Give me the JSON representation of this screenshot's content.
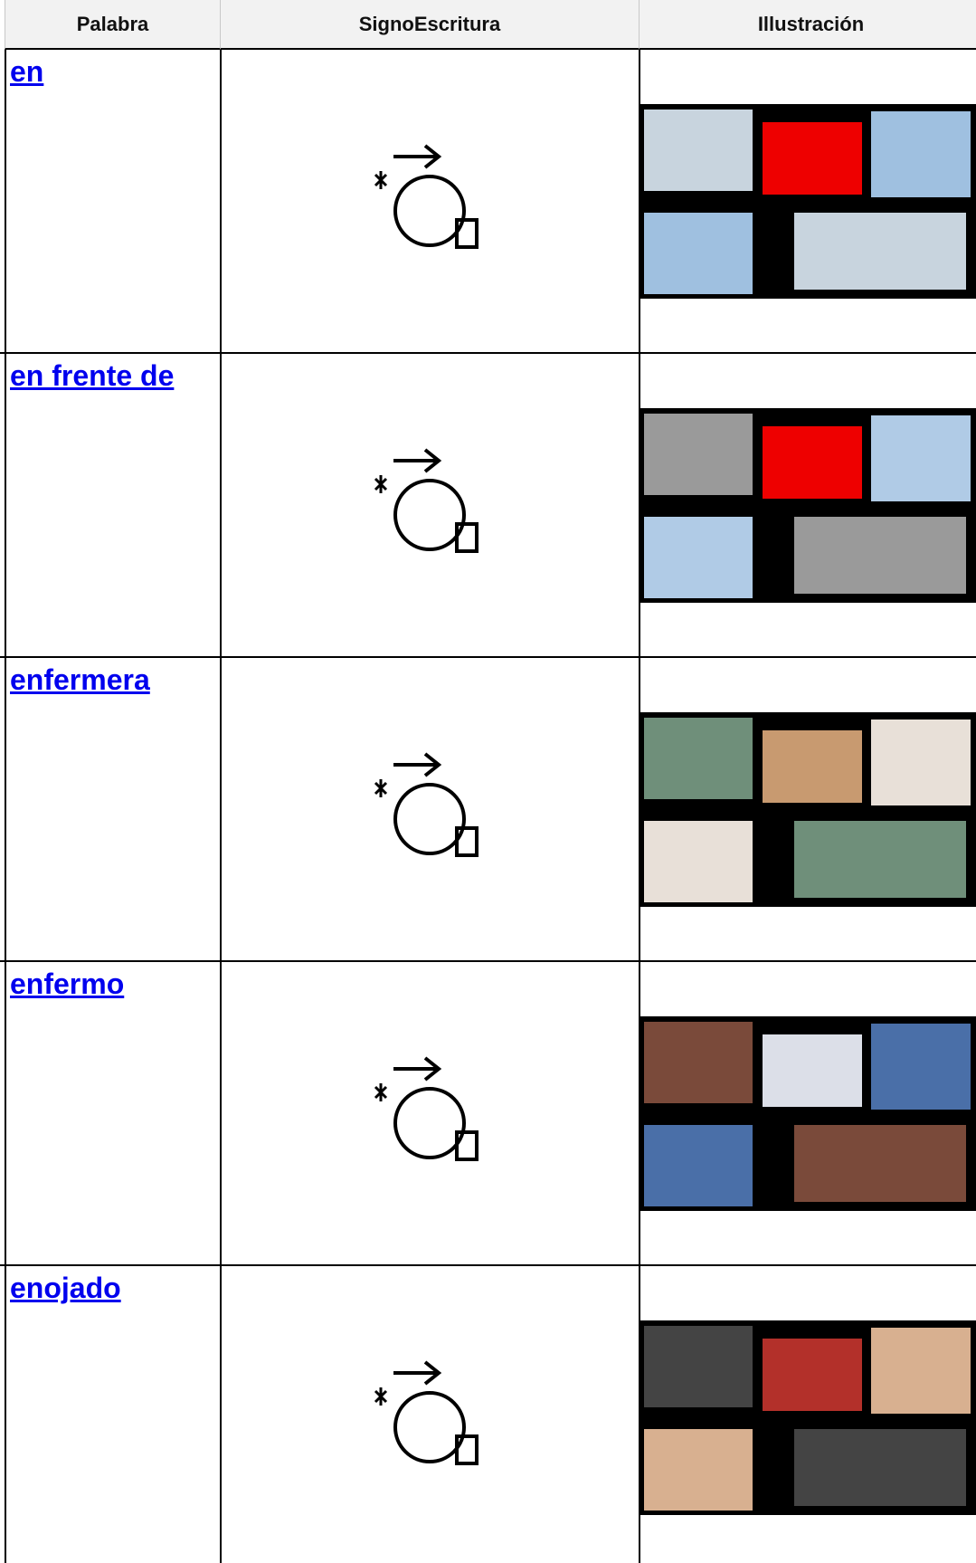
{
  "table": {
    "header": [
      "Palabra",
      "SignoEscritura",
      "Illustración"
    ],
    "rows": [
      "en",
      "en frente de",
      "enfermera",
      "enfermo",
      "enojado"
    ]
  }
}
